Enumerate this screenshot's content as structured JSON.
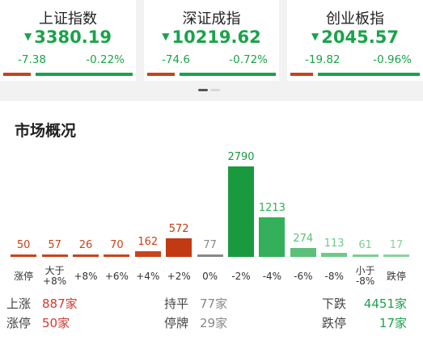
{
  "indices": [
    {
      "name": "上证指数",
      "price": "3380.19",
      "change": "-7.38",
      "pct": "-0.22%"
    },
    {
      "name": "深证成指",
      "price": "10219.62",
      "change": "-74.6",
      "pct": "-0.72%"
    },
    {
      "name": "创业板指",
      "price": "2045.57",
      "change": "-19.82",
      "pct": "-0.96%"
    }
  ],
  "colors": {
    "up": "#c9431b",
    "down": "#1aa34a",
    "flat": "#888888"
  },
  "overview": {
    "title": "市场概况",
    "categories": [
      "涨停",
      "大于\n+8%",
      "+8%",
      "+6%",
      "+4%",
      "+2%",
      "0%",
      "-2%",
      "-4%",
      "-6%",
      "-8%",
      "小于\n-8%",
      "跌停"
    ],
    "values": [
      50,
      57,
      26,
      70,
      162,
      572,
      77,
      2790,
      1213,
      274,
      113,
      61,
      17
    ],
    "bar_colors": [
      "#c9431b",
      "#c9431b",
      "#c9431b",
      "#c9431b",
      "#c9431b",
      "#c23a12",
      "#888888",
      "#1a9a3e",
      "#33b059",
      "#5cc079",
      "#6fc98a",
      "#7ccd93",
      "#8ad29e"
    ],
    "summary": {
      "rise_label": "上涨",
      "rise_value": "887家",
      "flat_label": "持平",
      "flat_value": "77家",
      "fall_label": "下跌",
      "fall_value": "4451家",
      "limit_up_label": "涨停",
      "limit_up_value": "50家",
      "suspended_label": "停牌",
      "suspended_value": "29家",
      "limit_down_label": "跌停",
      "limit_down_value": "17家"
    }
  }
}
